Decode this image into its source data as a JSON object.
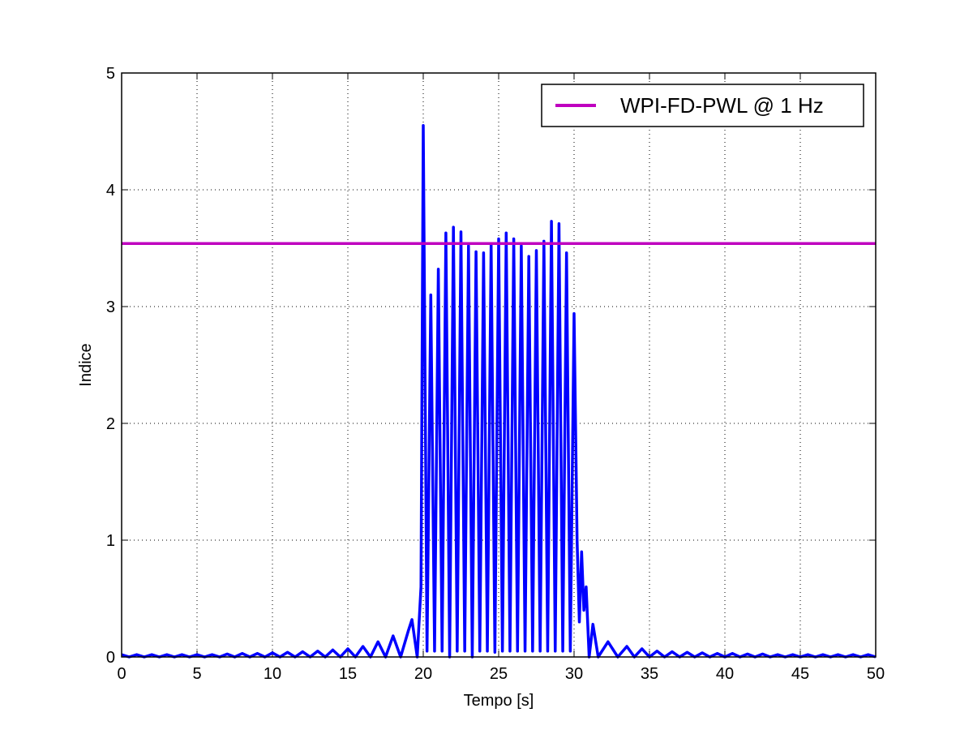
{
  "chart_data": {
    "type": "line",
    "xlabel": "Tempo [s]",
    "ylabel": "Indice",
    "xlim": [
      0,
      50
    ],
    "ylim": [
      0,
      5
    ],
    "xticks": [
      0,
      5,
      10,
      15,
      20,
      25,
      30,
      35,
      40,
      45,
      50
    ],
    "yticks": [
      0,
      1,
      2,
      3,
      4,
      5
    ],
    "grid": true,
    "legend_position": "upper right",
    "series": [
      {
        "name": null,
        "color": "#0000ff",
        "x": [
          0,
          0.5,
          1,
          1.5,
          2,
          2.5,
          3,
          3.5,
          4,
          4.5,
          5,
          5.5,
          6,
          6.5,
          7,
          7.5,
          8,
          8.5,
          9,
          9.5,
          10,
          10.5,
          11,
          11.5,
          12,
          12.5,
          13,
          13.5,
          14,
          14.5,
          15,
          15.5,
          16,
          16.5,
          17,
          17.5,
          18,
          18.5,
          19,
          19.25,
          19.6,
          19.85,
          20,
          20.25,
          20.5,
          20.75,
          21,
          21.25,
          21.5,
          21.75,
          22,
          22.25,
          22.5,
          22.75,
          23,
          23.25,
          23.5,
          23.75,
          24,
          24.25,
          24.5,
          24.75,
          25,
          25.25,
          25.5,
          25.75,
          26,
          26.25,
          26.5,
          26.75,
          27,
          27.25,
          27.5,
          27.75,
          28,
          28.25,
          28.5,
          28.75,
          29,
          29.25,
          29.5,
          29.75,
          30,
          30.2,
          30.35,
          30.5,
          30.65,
          30.8,
          31,
          31.25,
          31.6,
          32.25,
          32.9,
          33.5,
          34,
          34.5,
          35,
          35.5,
          36,
          36.5,
          37,
          37.5,
          38,
          38.5,
          39,
          39.5,
          40,
          40.5,
          41,
          41.5,
          42,
          42.5,
          43,
          43.5,
          44,
          44.5,
          45,
          45.5,
          46,
          46.5,
          47,
          47.5,
          48,
          48.5,
          49,
          49.5,
          50
        ],
        "values": [
          0.02,
          0,
          0.02,
          0,
          0.02,
          0,
          0.02,
          0,
          0.02,
          0,
          0.02,
          0,
          0.02,
          0,
          0.025,
          0,
          0.03,
          0,
          0.03,
          0,
          0.035,
          0,
          0.04,
          0,
          0.045,
          0,
          0.05,
          0,
          0.06,
          0,
          0.07,
          0,
          0.09,
          0,
          0.13,
          0,
          0.18,
          0,
          0.22,
          0.32,
          0,
          0.6,
          4.55,
          0.05,
          3.1,
          0.05,
          3.32,
          0.05,
          3.63,
          0,
          3.68,
          0.05,
          3.64,
          0.05,
          3.52,
          0,
          3.47,
          0.05,
          3.46,
          0.05,
          3.54,
          0.04,
          3.58,
          0.05,
          3.63,
          0.05,
          3.58,
          0.05,
          3.52,
          0.05,
          3.43,
          0.05,
          3.48,
          0.05,
          3.56,
          0.05,
          3.73,
          0.05,
          3.71,
          0.05,
          3.46,
          0.05,
          2.94,
          1.0,
          0.3,
          0.9,
          0.4,
          0.6,
          0,
          0.28,
          0,
          0.13,
          0,
          0.09,
          0,
          0.07,
          0,
          0.05,
          0,
          0.045,
          0,
          0.04,
          0,
          0.035,
          0,
          0.03,
          0,
          0.03,
          0,
          0.025,
          0,
          0.025,
          0,
          0.02,
          0,
          0.02,
          0,
          0.02,
          0,
          0.02,
          0,
          0.02,
          0,
          0.02,
          0,
          0.02,
          0
        ]
      },
      {
        "name": "WPI-FD-PWL @ 1 Hz",
        "color": "#bf00bf",
        "x": [
          0,
          50
        ],
        "values": [
          3.54,
          3.54
        ]
      }
    ]
  }
}
